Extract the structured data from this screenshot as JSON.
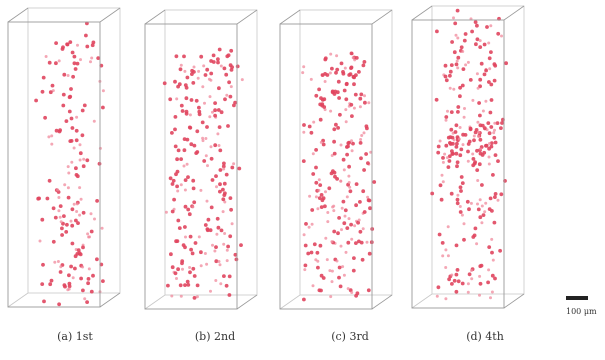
{
  "panels": [
    {
      "caption": "(a) 1st",
      "count": 170,
      "seed": 11,
      "distribution": "uniform-sparse-top"
    },
    {
      "caption": "(b) 2nd",
      "count": 230,
      "seed": 23,
      "distribution": "uniform"
    },
    {
      "caption": "(c) 3rd",
      "count": 240,
      "seed": 37,
      "distribution": "uniform"
    },
    {
      "caption": "(d) 4th",
      "count": 270,
      "seed": 51,
      "distribution": "cluster-middle"
    }
  ],
  "scale_bar": {
    "label": "100 μm"
  },
  "colors": {
    "dot": "#e0455e",
    "dot_light": "#f08a9c",
    "frame": "#9a9a9a",
    "frame_back": "#c8c8c8"
  }
}
